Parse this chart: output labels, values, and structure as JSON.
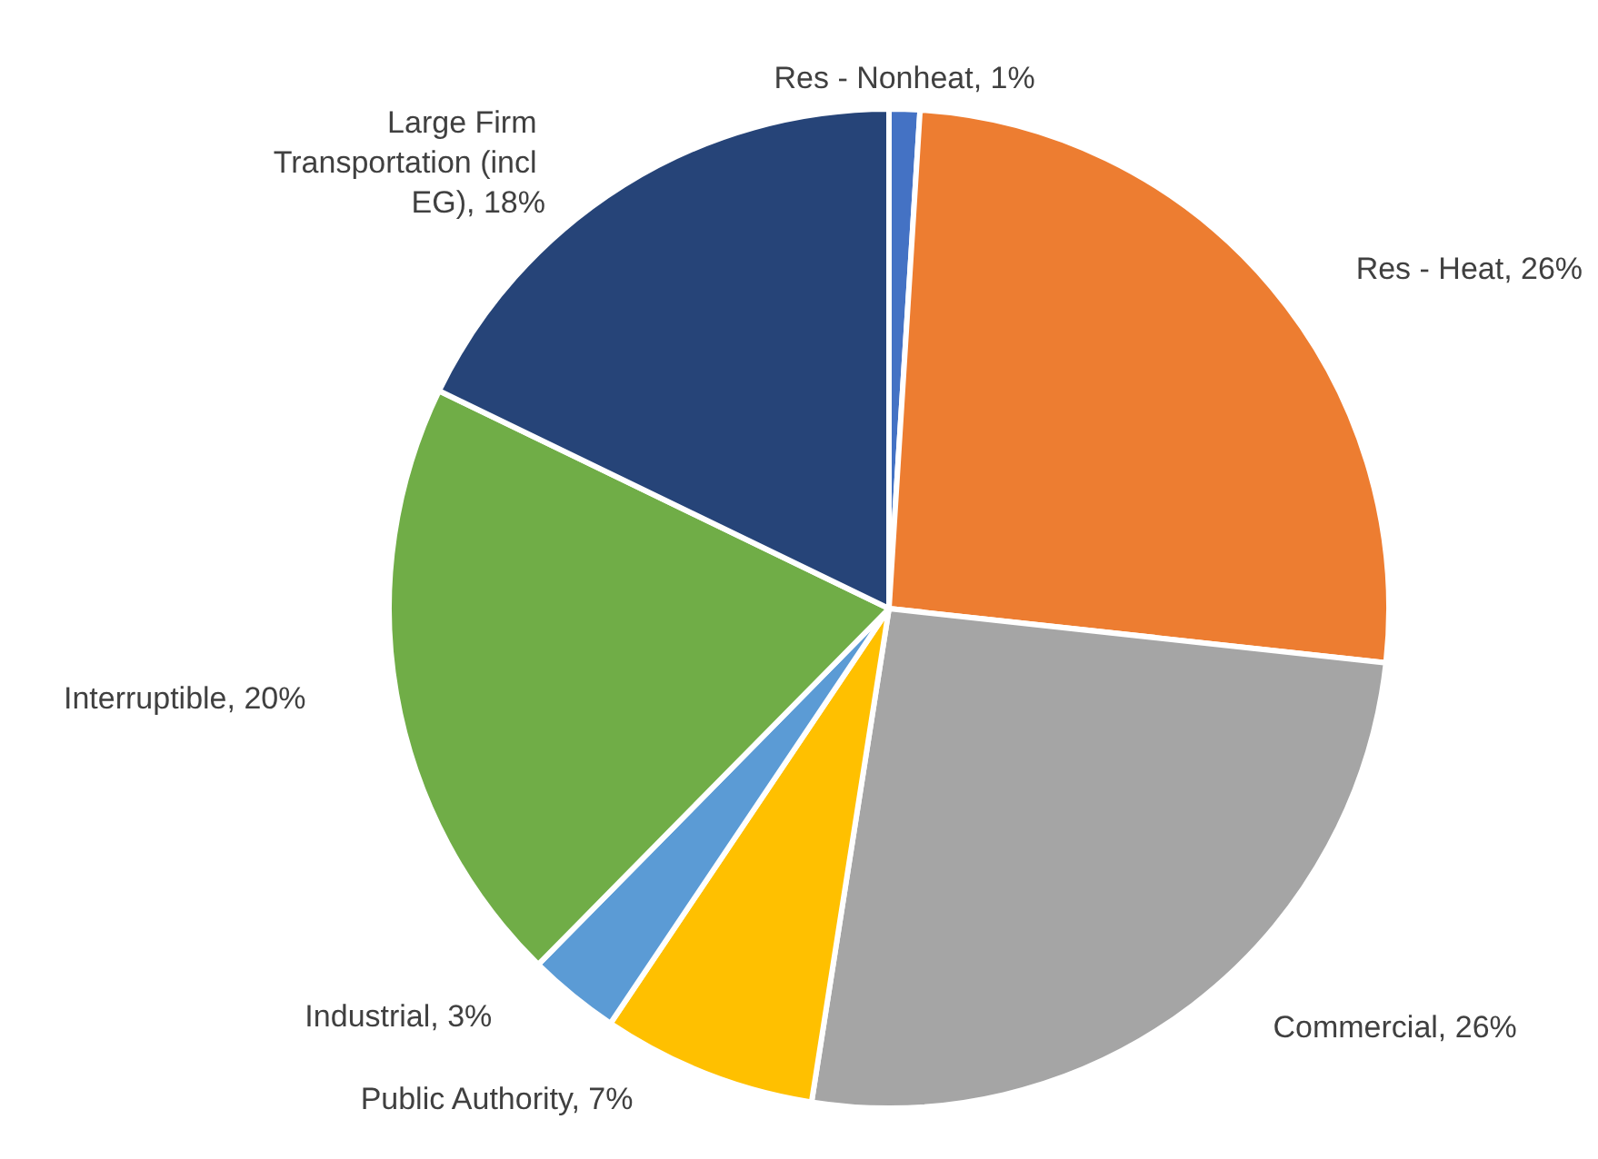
{
  "chart_data": {
    "type": "pie",
    "categories": [
      "Res - Nonheat",
      "Res - Heat",
      "Commercial",
      "Public Authority",
      "Industrial",
      "Interruptible",
      "Large Firm Transportation (incl EG)"
    ],
    "values": [
      1,
      26,
      26,
      7,
      3,
      20,
      18
    ],
    "value_labels": [
      "1%",
      "26%",
      "26%",
      "7%",
      "3%",
      "20%",
      "18%"
    ],
    "colors": [
      "#4472c4",
      "#ed7d31",
      "#a5a5a5",
      "#ffc000",
      "#5b9bd5",
      "#70ad47",
      "#264478"
    ],
    "legend": false
  }
}
